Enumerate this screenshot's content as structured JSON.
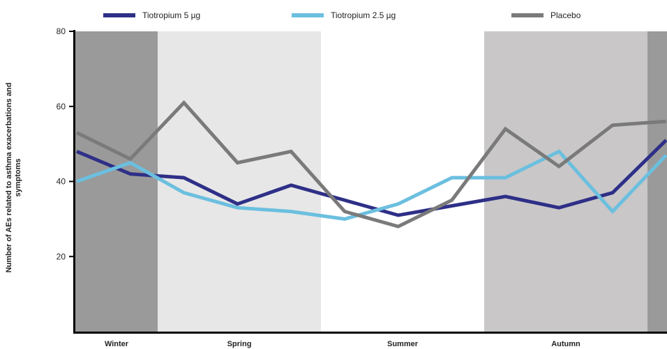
{
  "chart_data": {
    "type": "line",
    "title": "",
    "xlabel": "",
    "ylabel": "Number of AEs related to asthma exacerbations and symptoms",
    "ylim": [
      0,
      80
    ],
    "yticks": [
      "20",
      "40",
      "60",
      "80"
    ],
    "grid": false,
    "legend_position": "top",
    "x": [
      1,
      2,
      3,
      4,
      5,
      6,
      7,
      8,
      9,
      10,
      11,
      12
    ],
    "series": [
      {
        "name": "Tiotropium 5 µg",
        "color": "#2e2f87",
        "values": [
          48,
          42,
          41,
          34,
          39,
          35,
          31,
          33.5,
          36,
          33,
          37,
          51
        ]
      },
      {
        "name": "Tiotropium 2.5 µg",
        "color": "#6bbfdf",
        "values": [
          40,
          45,
          37,
          33,
          32,
          30,
          34,
          41,
          41,
          48,
          32,
          47
        ]
      },
      {
        "name": "Placebo",
        "color": "#7a7a7a",
        "values": [
          53,
          46,
          61,
          45,
          48,
          32,
          28,
          35,
          54,
          44,
          55,
          56
        ]
      }
    ],
    "season_bands": [
      {
        "label": "Winter",
        "color": "#9a9a9a"
      },
      {
        "label": "Spring",
        "color": "#e7e7e7"
      },
      {
        "label": "Summer",
        "color": "#ffffff"
      },
      {
        "label": "Autumn",
        "color": "#c9c7c8"
      },
      {
        "label": "",
        "color": "#9a9a9a"
      }
    ]
  }
}
